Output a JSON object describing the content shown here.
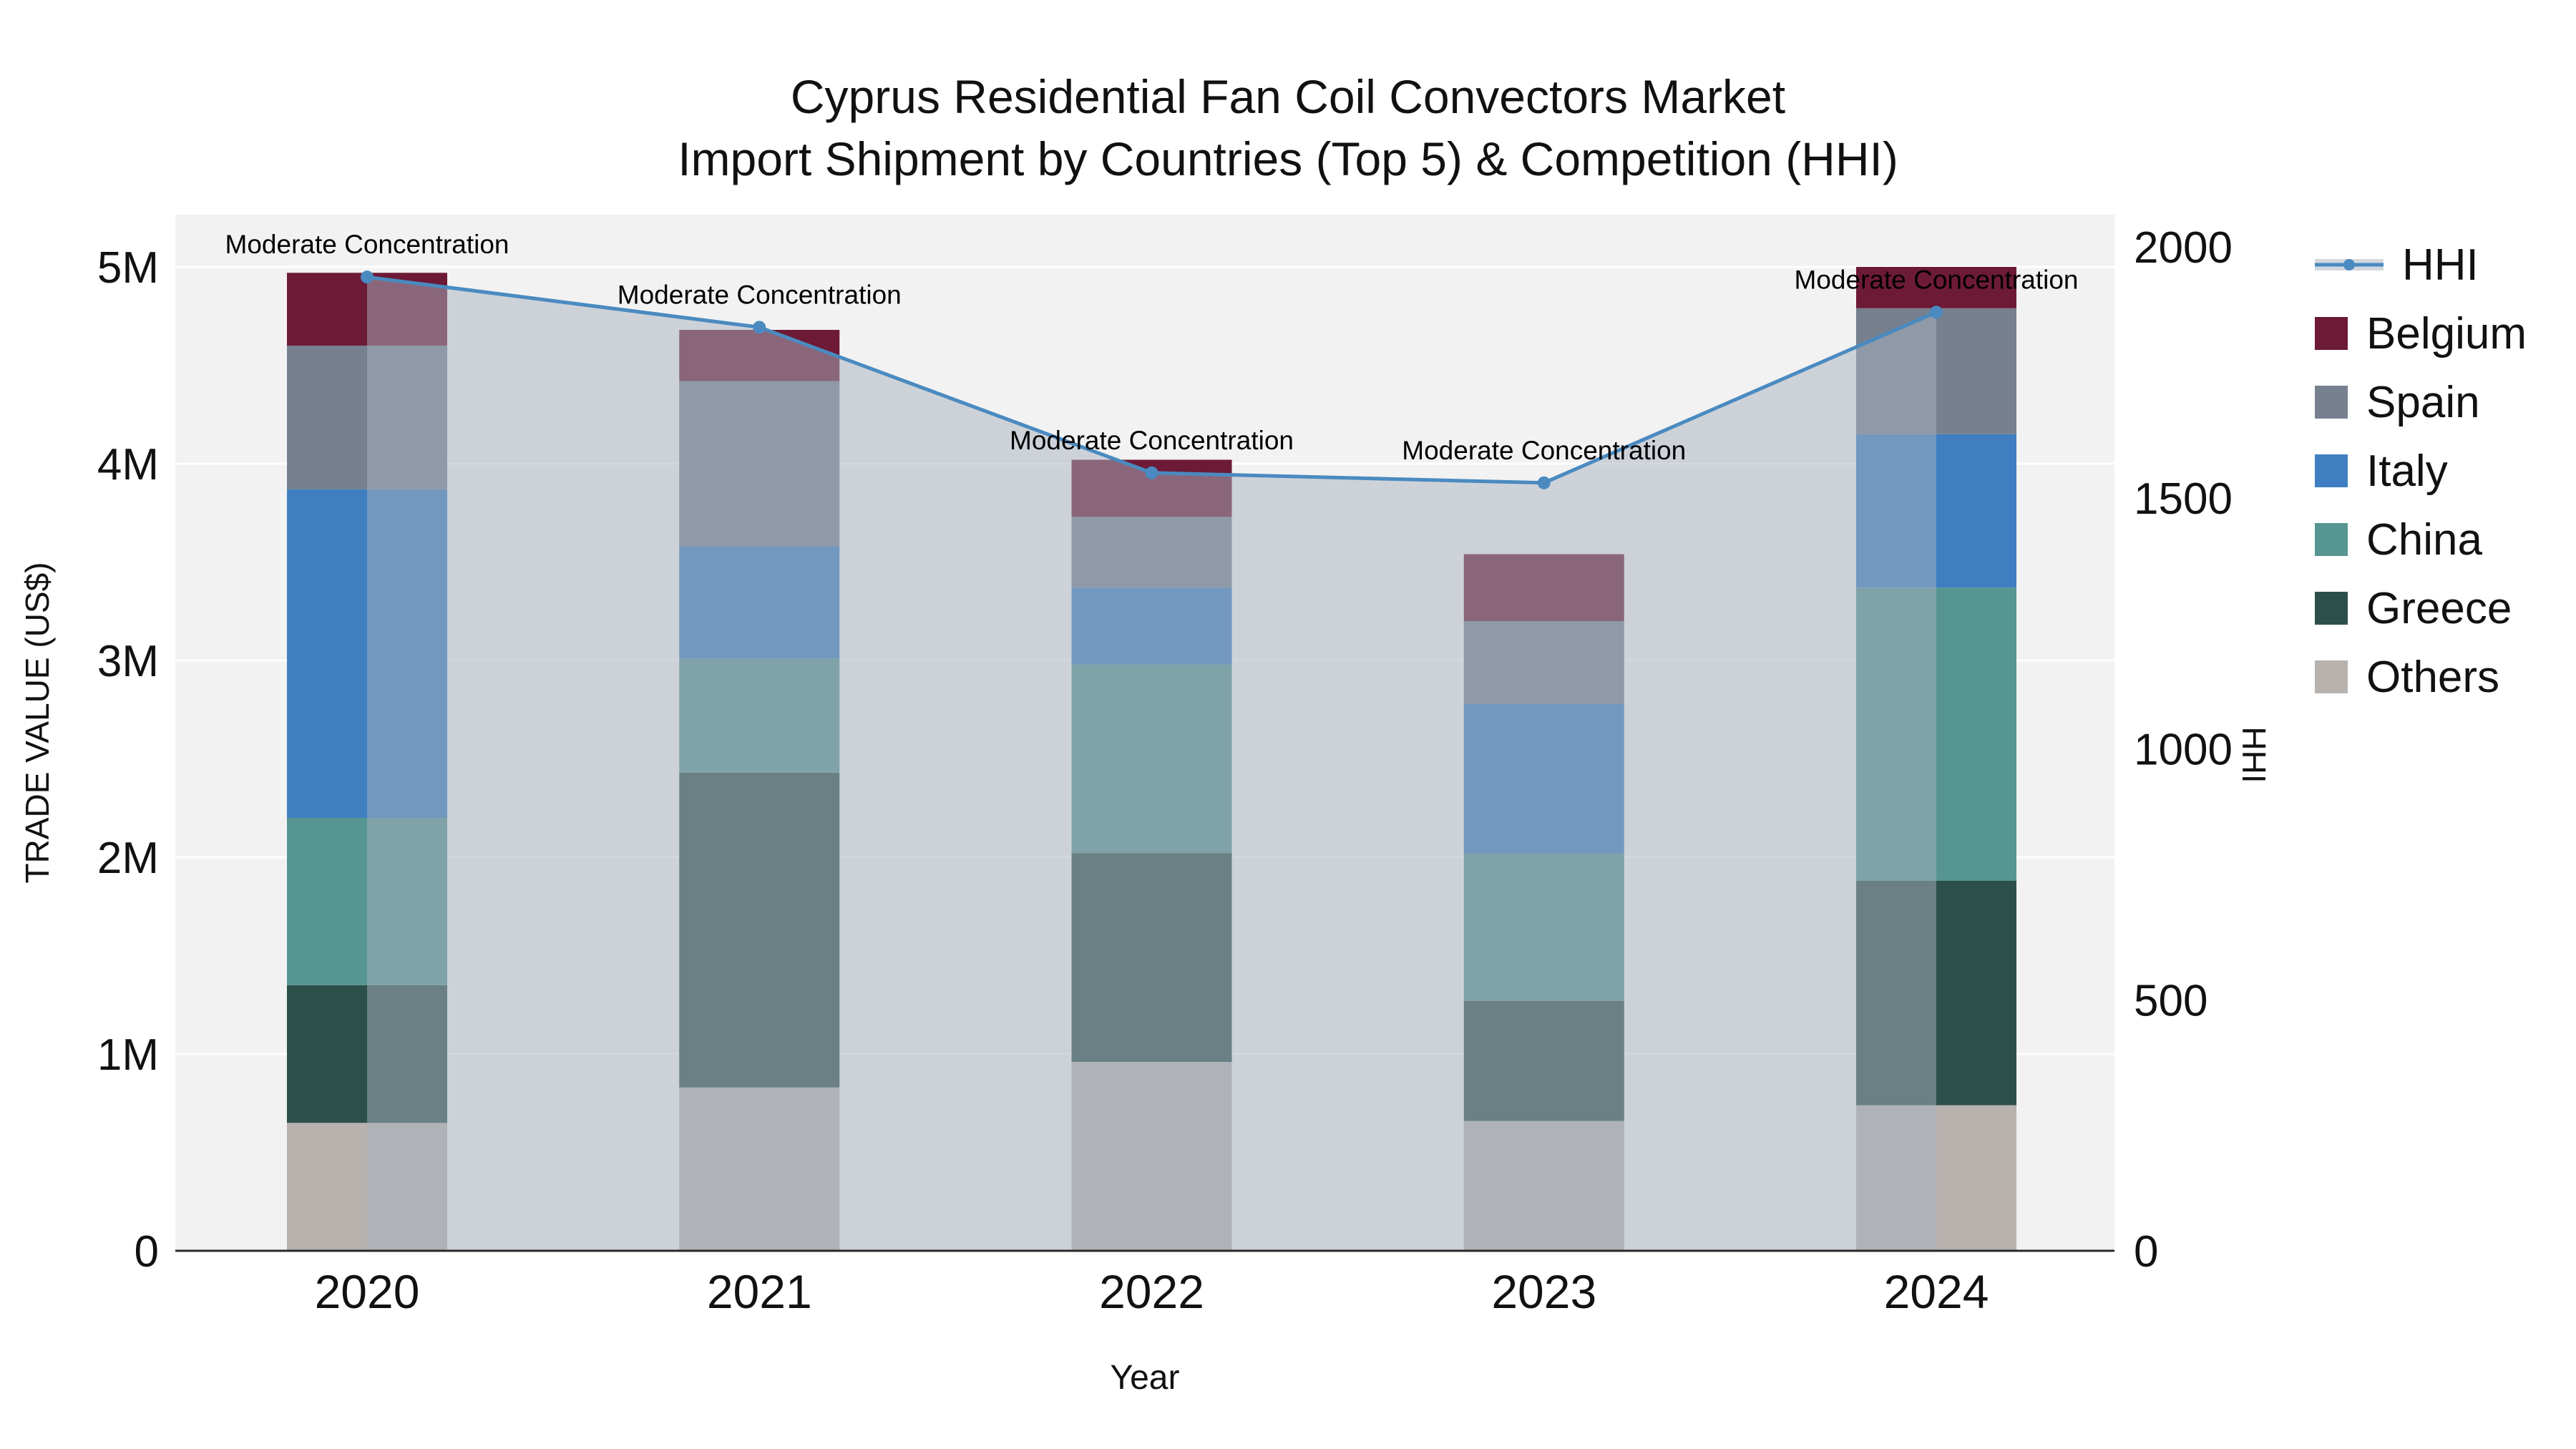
{
  "title": {
    "line1": "Cyprus Residential Fan Coil Convectors Market",
    "line2": "Import Shipment by Countries (Top 5) & Competition (HHI)"
  },
  "chart_data": {
    "type": "bar",
    "subtype": "stacked-bars-with-line-overlay",
    "unit": "trade value in millions of US$",
    "categories": [
      "2020",
      "2021",
      "2022",
      "2023",
      "2024"
    ],
    "x_label": "Year",
    "series": [
      {
        "name": "Others",
        "values": [
          0.65,
          0.83,
          0.96,
          0.66,
          0.74
        ],
        "color": "#b7b2ae"
      },
      {
        "name": "Greece",
        "values": [
          0.7,
          1.6,
          1.06,
          0.61,
          1.14
        ],
        "color": "#2d4f49"
      },
      {
        "name": "China",
        "values": [
          0.85,
          0.58,
          0.96,
          0.75,
          1.49
        ],
        "color": "#569591"
      },
      {
        "name": "Italy",
        "values": [
          1.67,
          0.57,
          0.39,
          0.76,
          0.78
        ],
        "color": "#3f7fc1"
      },
      {
        "name": "Spain",
        "values": [
          0.73,
          0.84,
          0.36,
          0.42,
          0.64
        ],
        "color": "#76808e"
      },
      {
        "name": "Belgium",
        "values": [
          0.37,
          0.26,
          0.29,
          0.34,
          0.21
        ],
        "color": "#6d1a36"
      }
    ],
    "bar_totals": [
      4.97,
      4.68,
      4.02,
      3.54,
      5.0
    ],
    "line": {
      "name": "HHI",
      "values": [
        1940,
        1840,
        1550,
        1530,
        1870
      ],
      "color": "#4a8ac0",
      "fill": "rgba(168,178,192,0.5)",
      "axis": "right"
    },
    "annotations": [
      "Moderate Concentration",
      "Moderate Concentration",
      "Moderate Concentration",
      "Moderate Concentration",
      "Moderate Concentration"
    ],
    "y_left": {
      "label": "TRADE VALUE (US$)",
      "ticks": [
        0,
        1,
        2,
        3,
        4,
        5
      ],
      "tick_labels": [
        "0",
        "1M",
        "2M",
        "3M",
        "4M",
        "5M"
      ],
      "range_millions": [
        0,
        5.27
      ]
    },
    "y_right": {
      "label": "HHI",
      "ticks": [
        0,
        500,
        1000,
        1500,
        2000
      ],
      "tick_labels": [
        "0",
        "500",
        "1000",
        "1500",
        "2000"
      ],
      "range": [
        0,
        2065
      ]
    },
    "legend_order": [
      "HHI",
      "Belgium",
      "Spain",
      "Italy",
      "China",
      "Greece",
      "Others"
    ],
    "grid": true,
    "legend_position": "right",
    "plot_background": "#f2f2f2"
  }
}
